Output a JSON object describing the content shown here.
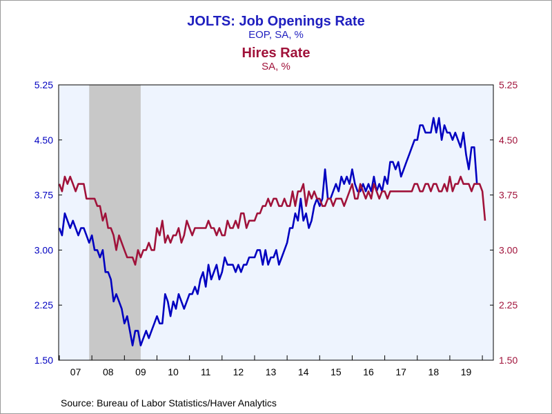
{
  "titles": {
    "primary": "JOLTS: Job Openings Rate",
    "primary_sub": "EOP, SA, %",
    "secondary": "Hires Rate",
    "secondary_sub": "SA, %"
  },
  "source": "Source:  Bureau of Labor Statistics/Haver Analytics",
  "colors": {
    "job_openings": "#0000c0",
    "hires": "#a0123a",
    "plot_bg": "#eef4fe",
    "recession": "#c8c8c8"
  },
  "chart_data": {
    "type": "line",
    "x_start": "2007-01",
    "x_end": "2019-12",
    "x_tick_labels": [
      "07",
      "08",
      "09",
      "10",
      "11",
      "12",
      "13",
      "14",
      "15",
      "16",
      "17",
      "18",
      "19"
    ],
    "y_left_ticks": [
      "5.25",
      "4.50",
      "3.75",
      "3.00",
      "2.25",
      "1.50"
    ],
    "y_right_ticks": [
      "5.25",
      "4.50",
      "3.75",
      "3.00",
      "2.25",
      "1.50"
    ],
    "ylim": [
      1.5,
      5.25
    ],
    "recession": {
      "start": "2007-12",
      "end": "2009-06"
    },
    "grid": false,
    "series": [
      {
        "name": "JOLTS: Job Openings Rate",
        "axis": "left",
        "color": "#0000c0",
        "values": [
          3.3,
          3.2,
          3.5,
          3.4,
          3.3,
          3.4,
          3.3,
          3.2,
          3.3,
          3.3,
          3.2,
          3.1,
          3.2,
          3.0,
          3.0,
          2.9,
          3.0,
          2.7,
          2.7,
          2.6,
          2.3,
          2.4,
          2.3,
          2.2,
          2.0,
          2.1,
          1.9,
          1.7,
          1.9,
          1.9,
          1.7,
          1.8,
          1.9,
          1.8,
          1.9,
          2.0,
          2.1,
          2.0,
          2.0,
          2.4,
          2.3,
          2.1,
          2.3,
          2.2,
          2.4,
          2.3,
          2.2,
          2.3,
          2.4,
          2.4,
          2.5,
          2.4,
          2.6,
          2.7,
          2.5,
          2.8,
          2.6,
          2.7,
          2.8,
          2.6,
          2.7,
          2.9,
          2.8,
          2.8,
          2.8,
          2.7,
          2.8,
          2.7,
          2.8,
          2.8,
          2.9,
          2.9,
          2.9,
          3.0,
          3.0,
          2.8,
          3.0,
          2.8,
          2.9,
          2.9,
          3.0,
          2.8,
          2.9,
          3.0,
          3.1,
          3.3,
          3.3,
          3.5,
          3.4,
          3.7,
          3.4,
          3.5,
          3.3,
          3.4,
          3.6,
          3.7,
          3.6,
          3.7,
          4.1,
          3.7,
          3.7,
          3.8,
          3.9,
          3.8,
          4.0,
          3.9,
          4.0,
          3.9,
          4.1,
          3.9,
          3.8,
          3.8,
          3.9,
          3.8,
          3.9,
          3.8,
          4.0,
          3.8,
          3.9,
          3.8,
          4.0,
          3.9,
          4.2,
          4.2,
          4.1,
          4.2,
          4.0,
          4.1,
          4.2,
          4.3,
          4.4,
          4.5,
          4.5,
          4.7,
          4.7,
          4.6,
          4.6,
          4.6,
          4.8,
          4.6,
          4.8,
          4.5,
          4.7,
          4.6,
          4.6,
          4.5,
          4.6,
          4.5,
          4.4,
          4.6,
          4.3,
          4.1,
          4.4,
          4.4,
          3.9
        ]
      },
      {
        "name": "Hires Rate",
        "axis": "right",
        "color": "#a0123a",
        "values": [
          3.9,
          3.8,
          4.0,
          3.9,
          4.0,
          3.9,
          3.8,
          3.9,
          3.9,
          3.9,
          3.7,
          3.7,
          3.7,
          3.7,
          3.6,
          3.6,
          3.4,
          3.5,
          3.3,
          3.3,
          3.2,
          3.0,
          3.2,
          3.1,
          3.0,
          2.9,
          2.9,
          2.9,
          2.8,
          3.0,
          2.9,
          3.0,
          3.0,
          3.1,
          3.0,
          3.0,
          3.3,
          3.2,
          3.4,
          3.1,
          3.2,
          3.1,
          3.2,
          3.2,
          3.3,
          3.1,
          3.2,
          3.4,
          3.3,
          3.2,
          3.3,
          3.3,
          3.3,
          3.3,
          3.3,
          3.4,
          3.3,
          3.3,
          3.2,
          3.3,
          3.2,
          3.2,
          3.4,
          3.3,
          3.3,
          3.4,
          3.3,
          3.5,
          3.5,
          3.3,
          3.4,
          3.4,
          3.4,
          3.5,
          3.5,
          3.6,
          3.6,
          3.7,
          3.6,
          3.7,
          3.7,
          3.6,
          3.6,
          3.7,
          3.6,
          3.6,
          3.8,
          3.6,
          3.8,
          3.8,
          3.9,
          3.6,
          3.8,
          3.7,
          3.8,
          3.7,
          3.7,
          3.6,
          3.6,
          3.7,
          3.7,
          3.6,
          3.7,
          3.7,
          3.7,
          3.6,
          3.7,
          3.8,
          3.9,
          3.7,
          3.7,
          3.9,
          3.8,
          3.7,
          3.8,
          3.7,
          3.9,
          3.8,
          3.7,
          3.8,
          3.8,
          3.7,
          3.8,
          3.8,
          3.8,
          3.8,
          3.8,
          3.8,
          3.8,
          3.8,
          3.8,
          3.9,
          3.9,
          3.8,
          3.8,
          3.9,
          3.9,
          3.8,
          3.9,
          3.9,
          3.8,
          3.8,
          3.9,
          3.8,
          4.0,
          3.8,
          3.9,
          3.9,
          4.0,
          3.9,
          3.9,
          3.9,
          3.8,
          3.9,
          3.9,
          3.9,
          3.8,
          3.4
        ]
      }
    ]
  }
}
